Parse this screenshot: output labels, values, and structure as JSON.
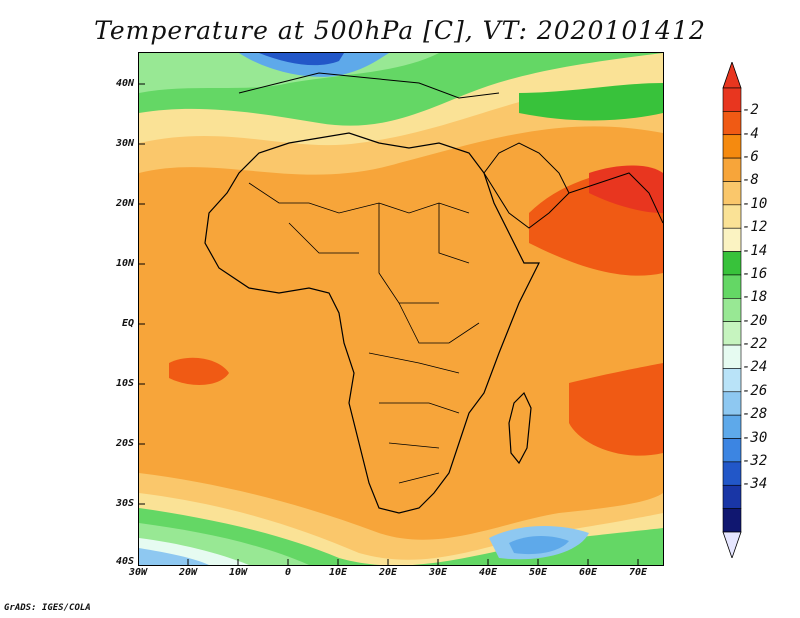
{
  "title": "Temperature at 500hPa [C], VT: 2020101412",
  "credit": "GrADS: IGES/COLA",
  "map": {
    "lat_labels": [
      "40N",
      "30N",
      "20N",
      "10N",
      "EQ",
      "10S",
      "20S",
      "30S",
      "40S"
    ],
    "lon_labels": [
      "30W",
      "20W",
      "10W",
      "0",
      "10E",
      "20E",
      "30E",
      "40E",
      "50E",
      "60E",
      "70E"
    ]
  },
  "colorbar": {
    "labels": [
      "-2",
      "-4",
      "-6",
      "-8",
      "-10",
      "-12",
      "-14",
      "-16",
      "-18",
      "-20",
      "-22",
      "-24",
      "-26",
      "-28",
      "-30",
      "-32",
      "-34"
    ],
    "colors": [
      "#e8361f",
      "#f05a14",
      "#f58a0f",
      "#f7a53a",
      "#fac76b",
      "#fae296",
      "#fbf3c2",
      "#38c23b",
      "#64d765",
      "#98e894",
      "#c6f4bf",
      "#e6fbf1",
      "#b9e3f8",
      "#8ec8f1",
      "#5ea9ea",
      "#3c85e2",
      "#2257c8",
      "#1936a6",
      "#101770"
    ],
    "end_low_color": "#e6e6ff"
  }
}
